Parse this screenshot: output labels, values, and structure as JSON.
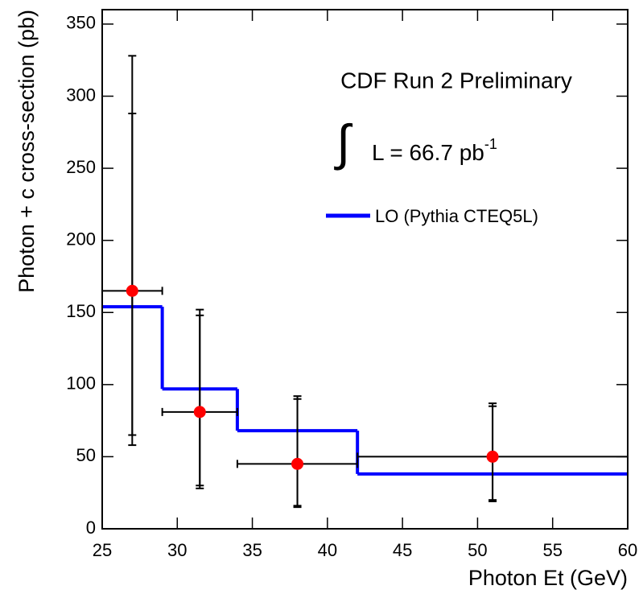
{
  "chart_data": {
    "type": "scatter",
    "x_label": "Photon Et (GeV)",
    "y_label": "Photon + c cross-section (pb)",
    "annotation": "CDF Run 2 Preliminary",
    "luminosity": {
      "symbol": "∫",
      "text": "L = 66.7 pb",
      "superscript": "-1"
    },
    "xlim": [
      25,
      60
    ],
    "xticks": [
      25,
      30,
      35,
      40,
      45,
      50,
      55,
      60
    ],
    "ylim": [
      0,
      360
    ],
    "yticks": [
      0,
      50,
      100,
      150,
      200,
      250,
      300,
      350
    ],
    "points": {
      "color": "#ff0000",
      "x": [
        27,
        31.5,
        38,
        51
      ],
      "values": [
        165,
        81,
        45,
        50
      ],
      "x_low": [
        25,
        29,
        34,
        42
      ],
      "x_high": [
        29,
        34,
        42,
        60
      ],
      "stat_low": [
        65,
        30,
        16,
        20
      ],
      "stat_high": [
        288,
        148,
        90,
        85
      ],
      "total_low": [
        58,
        28,
        15,
        19
      ],
      "total_high": [
        328,
        152,
        92,
        87
      ]
    },
    "step": {
      "name": "LO (Pythia CTEQ5L)",
      "color": "#0000ff",
      "bins": [
        25,
        29,
        34,
        42,
        60
      ],
      "values": [
        154,
        97,
        68,
        38
      ]
    }
  }
}
